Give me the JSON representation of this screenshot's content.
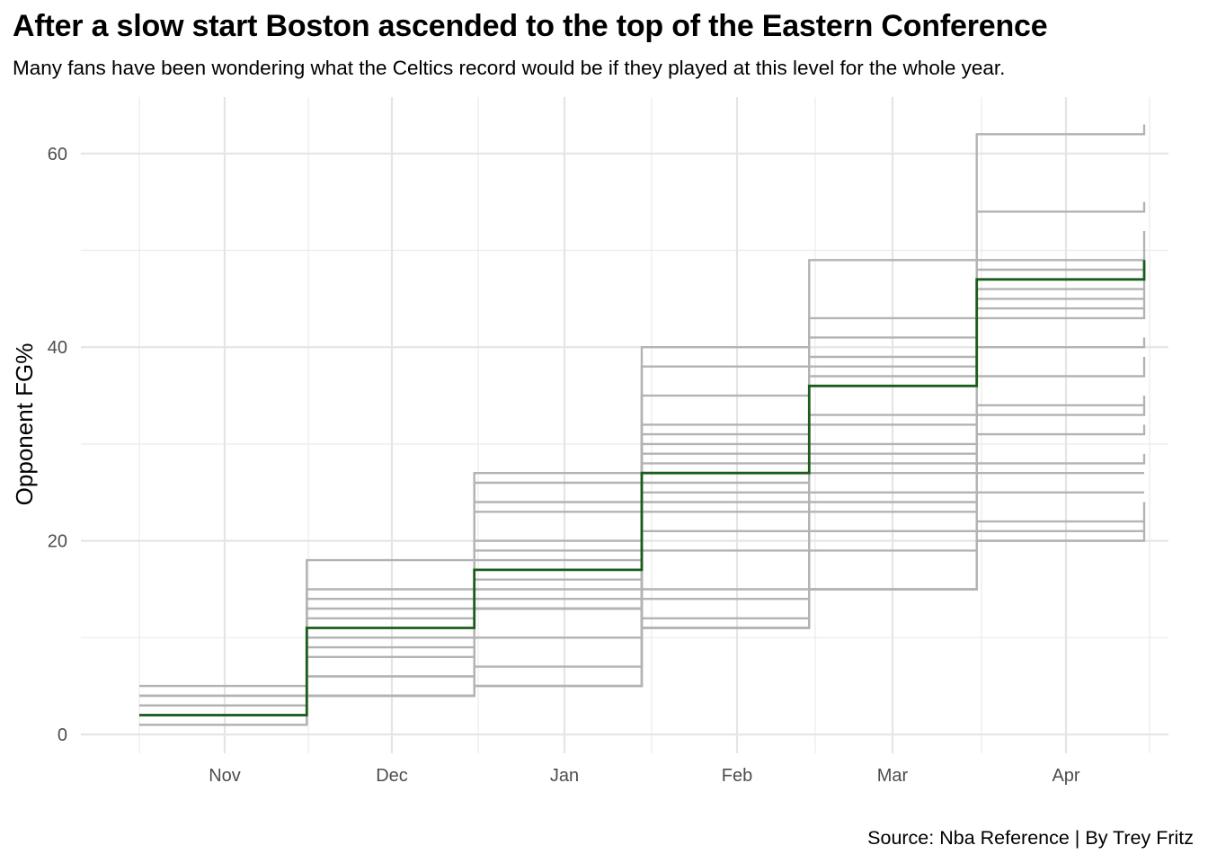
{
  "title": "After a slow start Boston ascended to the top of the Eastern Conference",
  "subtitle": "Many fans have been wondering what the Celtics record would be if they played at this level for the whole year.",
  "caption": "Source: Nba Reference | By Trey Fritz",
  "chart_data": {
    "type": "line",
    "step": true,
    "ylabel": "Opponent FG%",
    "xlabel": "",
    "x_ticks": [
      "Nov",
      "Dec",
      "Jan",
      "Feb",
      "Mar",
      "Apr"
    ],
    "y_ticks": [
      0,
      20,
      40,
      60
    ],
    "ylim": [
      -2,
      65
    ],
    "x_breaks": [
      "Oct",
      "Nov",
      "Dec",
      "Jan",
      "Feb",
      "Mar",
      "Apr"
    ],
    "grid": true,
    "legend": "none",
    "highlight_color": "#1a5c1a",
    "other_color": "#b3b3b3",
    "series": [
      {
        "highlight": true,
        "values": [
          2,
          11,
          17,
          27,
          36,
          47,
          49
        ]
      },
      {
        "values": [
          5,
          18,
          27,
          40,
          49,
          62,
          63
        ]
      },
      {
        "values": [
          4,
          15,
          26,
          38,
          43,
          54,
          55
        ]
      },
      {
        "values": [
          3,
          14,
          24,
          35,
          41,
          49,
          52
        ]
      },
      {
        "values": [
          2,
          13,
          23,
          32,
          39,
          48,
          49
        ]
      },
      {
        "values": [
          1,
          12,
          20,
          31,
          38,
          46,
          47
        ]
      },
      {
        "values": [
          1,
          10,
          19,
          30,
          37,
          45,
          46
        ]
      },
      {
        "values": [
          2,
          9,
          18,
          29,
          33,
          44,
          45
        ]
      },
      {
        "values": [
          3,
          8,
          16,
          28,
          32,
          43,
          44
        ]
      },
      {
        "values": [
          4,
          6,
          15,
          26,
          30,
          40,
          41
        ]
      },
      {
        "values": [
          1,
          4,
          13,
          25,
          29,
          37,
          39
        ]
      },
      {
        "values": [
          3,
          4,
          10,
          24,
          28,
          34,
          35
        ]
      },
      {
        "values": [
          2,
          6,
          14,
          23,
          27,
          33,
          34
        ]
      },
      {
        "values": [
          1,
          4,
          7,
          21,
          25,
          31,
          32
        ]
      },
      {
        "values": [
          2,
          4,
          5,
          19,
          24,
          28,
          29
        ]
      },
      {
        "values": [
          1,
          4,
          5,
          15,
          23,
          27,
          27
        ]
      },
      {
        "values": [
          2,
          4,
          5,
          14,
          21,
          25,
          25
        ]
      },
      {
        "values": [
          3,
          4,
          13,
          12,
          19,
          22,
          24
        ]
      },
      {
        "values": [
          4,
          4,
          13,
          11,
          15,
          21,
          22
        ]
      },
      {
        "values": [
          1,
          4,
          13,
          11,
          15,
          20,
          21
        ]
      },
      {
        "values": [
          2,
          4,
          13,
          11,
          15,
          20,
          20
        ]
      }
    ]
  }
}
